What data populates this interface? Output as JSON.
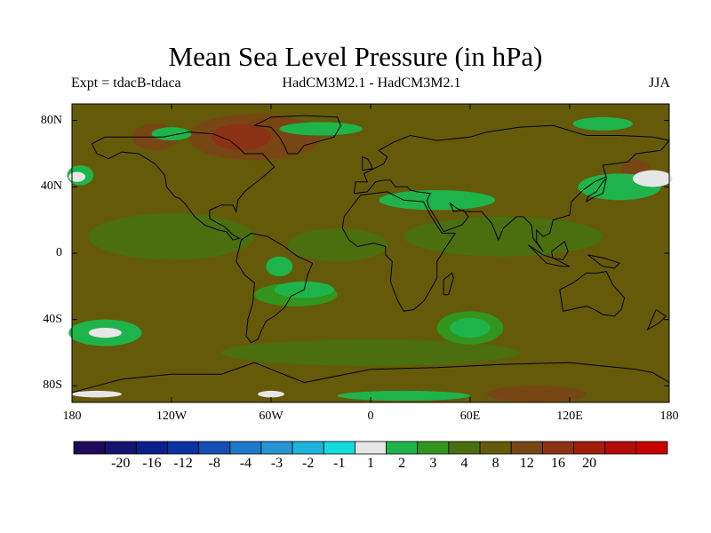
{
  "title": "Mean Sea Level Pressure (in hPa)",
  "subtitle_left": "Expt = tdacB-tdaca",
  "subtitle_center": "HadCM3M2.1 - HadCM3M2.1",
  "subtitle_right": "JJA",
  "map": {
    "lat_ticks": [
      {
        "label": "80N",
        "lat": 80
      },
      {
        "label": "40N",
        "lat": 40
      },
      {
        "label": "0",
        "lat": 0
      },
      {
        "label": "40S",
        "lat": -40
      },
      {
        "label": "80S",
        "lat": -80
      }
    ],
    "lon_ticks": [
      {
        "label": "180",
        "lon": -180
      },
      {
        "label": "120W",
        "lon": -120
      },
      {
        "label": "60W",
        "lon": -60
      },
      {
        "label": "0",
        "lon": 0
      },
      {
        "label": "60E",
        "lon": 60
      },
      {
        "label": "120E",
        "lon": 120
      },
      {
        "label": "180",
        "lon": 180
      }
    ],
    "extent": {
      "lon": [
        -180,
        180
      ],
      "lat": [
        -90,
        90
      ]
    }
  },
  "colorbar": {
    "colors": [
      "#1e0a5a",
      "#14146e",
      "#0a1e8c",
      "#0a32a0",
      "#1450b4",
      "#1e78c8",
      "#2896d2",
      "#1eb4dc",
      "#14dcdc",
      "#e6e6e6",
      "#1eb44b",
      "#32961e",
      "#4b6e0f",
      "#645a0a",
      "#784614",
      "#8c3214",
      "#a01e0a",
      "#b40a0a",
      "#c80000"
    ],
    "labels": [
      "-20",
      "-16",
      "-12",
      "-8",
      "-4",
      "-3",
      "-2",
      "-1",
      "1",
      "2",
      "3",
      "4",
      "8",
      "12",
      "16",
      "20"
    ]
  }
}
